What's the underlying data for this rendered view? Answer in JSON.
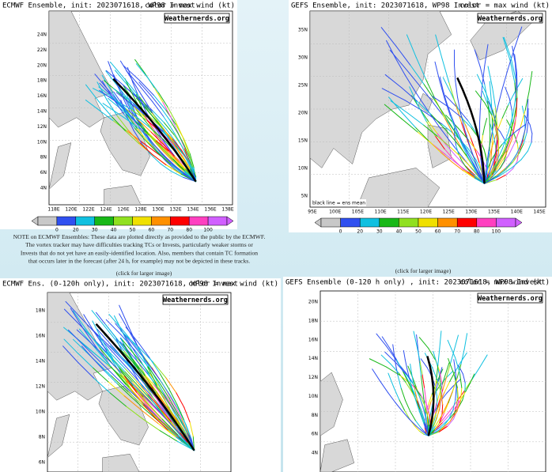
{
  "panels": [
    {
      "title": "ECMWF Ensemble, init: 2023071618, WP98 Invest",
      "color_note": "color = max wind (kt)",
      "watermark": "Weathernerds.org",
      "lat_labels": [
        "24N",
        "22N",
        "20N",
        "18N",
        "16N",
        "14N",
        "12N",
        "10N",
        "8N",
        "6N",
        "4N"
      ],
      "lon_labels": [
        "118E",
        "120E",
        "122E",
        "124E",
        "126E",
        "128E",
        "130E",
        "132E",
        "134E",
        "136E",
        "138E"
      ],
      "colorbar_labels": [
        0,
        20,
        30,
        40,
        50,
        60,
        70,
        80,
        100
      ]
    },
    {
      "title": "GEFS Ensemble, init: 2023071618, WP98 Invest",
      "color_note": "color = max wind (kt)",
      "watermark": "Weathernerds.org",
      "mean_note": "black line = ens mean",
      "lat_labels": [
        "35N",
        "30N",
        "25N",
        "20N",
        "15N",
        "10N",
        "5N"
      ],
      "lon_labels": [
        "95E",
        "100E",
        "105E",
        "110E",
        "115E",
        "120E",
        "125E",
        "130E",
        "135E",
        "140E",
        "145E"
      ],
      "colorbar_labels": [
        0,
        20,
        30,
        40,
        50,
        60,
        70,
        80,
        100
      ]
    },
    {
      "title": "ECMWF Ens. (0-120h only), init: 2023071618, WP98 Invest",
      "color_note": "color = max wind (kt)",
      "watermark": "Weathernerds.org",
      "lat_labels": [
        "18N",
        "16N",
        "14N",
        "12N",
        "10N",
        "8N",
        "6N"
      ]
    },
    {
      "title": "GEFS Ensemble (0-120 h only) , init: 2023071618, WP98 Invest",
      "color_note": "color = max wind (kt)",
      "watermark": "Weathernerds.org",
      "lat_labels": [
        "20N",
        "18N",
        "16N",
        "14N",
        "12N",
        "10N",
        "8N",
        "6N",
        "4N"
      ]
    }
  ],
  "note": [
    "NOTE on ECMWF Ensembles: These data are plotted directly as provided to the public by the ECMWF.",
    "The vortex tracker may have difficulties tracking TCs or Invests, particularly weaker storms or",
    "Invests that do not yet have an easily-identified location. Also, members that contain TC formation",
    "that occurs later in the forecast (after 24 h, for example) may not be depicted in these tracks."
  ],
  "click_labels": [
    "(click for larger image)",
    "(click for larger image)"
  ]
}
